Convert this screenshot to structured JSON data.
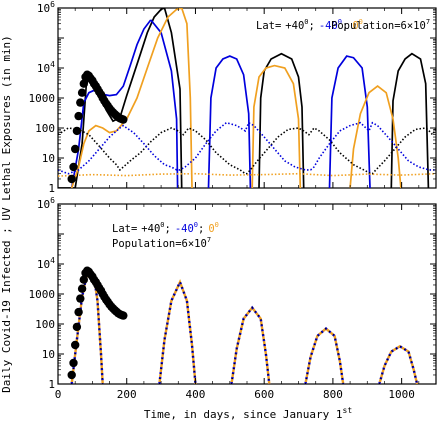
{
  "figure": {
    "ylabel": "Daily Covid-19 Infected ; UV Lethal Exposures (in min)",
    "xlabel": "Time, in days, since January 1",
    "xlabel_sup": "st"
  },
  "colors": {
    "lat_plus40": "#000000",
    "lat_minus40": "#0000dd",
    "lat_0": "#f0a020",
    "observed": "#000000"
  },
  "chart_data": [
    {
      "type": "line",
      "panel": "top",
      "xlim": [
        0,
        1100
      ],
      "ylim": [
        1,
        1000000
      ],
      "yscale": "log",
      "grid": false,
      "legend": {
        "lat_prefix": "Lat=",
        "lat_plus40": "+40",
        "sep1": ";",
        "lat_minus40": "-40",
        "sep2": ";",
        "lat_0": "0",
        "degree": "0",
        "population": "Population=6×10",
        "pop_exp": "7"
      },
      "x_ticks": [
        0,
        200,
        400,
        600,
        800,
        1000
      ],
      "y_ticks": [
        {
          "v": 1,
          "label": "1"
        },
        {
          "v": 10,
          "label": "10"
        },
        {
          "v": 100,
          "label": "100"
        },
        {
          "v": 1000,
          "label": "1000"
        },
        {
          "v": 10000,
          "label": "10",
          "sup": "4"
        },
        {
          "v": 1000000,
          "label": "10",
          "sup": "6"
        }
      ],
      "series": [
        {
          "key": "inf_p40",
          "color_key": "lat_plus40",
          "style": "solid",
          "x": [
            0,
            50,
            70,
            82,
            90,
            105,
            120,
            140,
            160,
            180,
            200,
            220,
            240,
            260,
            280,
            300,
            310
          ],
          "y": [
            1,
            1,
            30,
            2500,
            5000,
            3500,
            1300,
            400,
            170,
            220,
            1200,
            6000,
            30000,
            150000,
            500000,
            900000,
            1000000
          ],
          "segments": [
            {
              "x": [
                310,
                330,
                355,
                360
              ],
              "y": [
                1000000,
                150000,
                2000,
                1
              ]
            },
            {
              "x": [
                585,
                590,
                600,
                620,
                650,
                680,
                700,
                710,
                715
              ],
              "y": [
                1,
                1000,
                8000,
                20000,
                30000,
                20000,
                5000,
                500,
                1
              ]
            },
            {
              "x": [
                970,
                975,
                990,
                1010,
                1030,
                1055,
                1070,
                1078
              ],
              "y": [
                1,
                800,
                8000,
                20000,
                30000,
                20000,
                3000,
                1
              ]
            }
          ]
        },
        {
          "key": "inf_m40",
          "color_key": "lat_minus40",
          "style": "solid",
          "x": [
            40,
            60,
            75,
            90,
            105,
            120,
            135,
            150,
            170,
            190,
            210,
            230,
            250,
            270
          ],
          "y": [
            1,
            20,
            700,
            1500,
            1800,
            1600,
            1300,
            1200,
            1300,
            2500,
            12000,
            60000,
            200000,
            400000
          ],
          "segments": [
            {
              "x": [
                270,
                300,
                330,
                345,
                348
              ],
              "y": [
                400000,
                150000,
                8000,
                200,
                1
              ]
            },
            {
              "x": [
                438,
                445,
                460,
                480,
                500,
                520,
                540,
                555,
                560
              ],
              "y": [
                1,
                1000,
                10000,
                20000,
                25000,
                20000,
                6000,
                300,
                1
              ]
            },
            {
              "x": [
                790,
                797,
                815,
                840,
                860,
                885,
                900,
                908
              ],
              "y": [
                1,
                1000,
                10000,
                25000,
                22000,
                10000,
                500,
                1
              ]
            }
          ]
        },
        {
          "key": "inf_0",
          "color_key": "lat_0",
          "style": "solid",
          "x": [
            40,
            60,
            75,
            90,
            110,
            130,
            150,
            170,
            200,
            230,
            260,
            290,
            320,
            345,
            360
          ],
          "y": [
            1,
            5,
            30,
            80,
            120,
            100,
            70,
            80,
            200,
            1000,
            10000,
            100000,
            500000,
            900000,
            1000000
          ],
          "segments": [
            {
              "x": [
                360,
                375,
                385,
                390
              ],
              "y": [
                1000000,
                300000,
                1000,
                1
              ]
            },
            {
              "x": [
                565,
                570,
                585,
                605,
                630,
                660,
                685,
                700,
                705
              ],
              "y": [
                1,
                500,
                5000,
                10000,
                12000,
                10000,
                3000,
                200,
                1
              ]
            },
            {
              "x": [
                850,
                860,
                880,
                905,
                930,
                955,
                975,
                990,
                998
              ],
              "y": [
                1,
                20,
                300,
                1500,
                2500,
                1500,
                200,
                10,
                1
              ]
            }
          ]
        },
        {
          "key": "uv_p40",
          "color_key": "lat_plus40",
          "style": "dotted",
          "x": [
            0,
            30,
            60,
            90,
            120,
            150,
            170,
            180,
            190,
            210,
            240,
            270,
            300,
            330,
            350,
            365,
            380,
            400,
            430,
            460,
            500,
            530,
            545,
            550,
            560,
            580,
            610,
            640,
            670,
            700,
            715,
            730,
            745,
            760,
            790,
            820,
            860,
            890,
            910,
            915,
            925,
            950,
            980,
            1010,
            1040,
            1070,
            1080,
            1090,
            1100
          ],
          "y": [
            60,
            100,
            90,
            60,
            25,
            10,
            6,
            4,
            5,
            8,
            15,
            35,
            70,
            100,
            80,
            60,
            100,
            80,
            40,
            15,
            6,
            4,
            3,
            3,
            4,
            8,
            20,
            50,
            90,
            100,
            80,
            60,
            100,
            80,
            40,
            15,
            6,
            4,
            3,
            3,
            4,
            8,
            20,
            50,
            90,
            100,
            80,
            60,
            100
          ]
        },
        {
          "key": "uv_m40",
          "color_key": "lat_minus40",
          "style": "dotted",
          "x": [
            0,
            30,
            60,
            90,
            120,
            150,
            180,
            190,
            200,
            220,
            250,
            280,
            310,
            330,
            345,
            355,
            370,
            400,
            430,
            460,
            490,
            520,
            545,
            555,
            570,
            600,
            630,
            660,
            690,
            720,
            735,
            745,
            760,
            790,
            820,
            850,
            880,
            905,
            915,
            930,
            960,
            990,
            1020,
            1050,
            1080,
            1100
          ],
          "y": [
            4,
            3,
            4,
            8,
            20,
            50,
            100,
            120,
            100,
            70,
            30,
            12,
            6,
            5,
            4,
            4,
            5,
            10,
            30,
            80,
            150,
            120,
            80,
            150,
            120,
            50,
            20,
            8,
            5,
            4,
            4,
            5,
            10,
            30,
            80,
            120,
            150,
            80,
            150,
            120,
            50,
            20,
            8,
            5,
            4,
            4
          ]
        },
        {
          "key": "uv_0",
          "color_key": "lat_0",
          "style": "dotted",
          "x": [
            0,
            100,
            200,
            300,
            400,
            500,
            600,
            700,
            800,
            900,
            1000,
            1100
          ],
          "y": [
            2.5,
            2.8,
            2.6,
            2.9,
            3,
            2.7,
            2.8,
            3,
            2.6,
            2.9,
            2.7,
            3
          ]
        }
      ],
      "observed": {
        "x": [
          40,
          45,
          50,
          55,
          60,
          65,
          70,
          75,
          80,
          85,
          90,
          95,
          100,
          105,
          110,
          115,
          120,
          125,
          130,
          135,
          140,
          145,
          150,
          155,
          160,
          165,
          170,
          175,
          180,
          185,
          190
        ],
        "y": [
          2,
          5,
          20,
          80,
          250,
          700,
          1500,
          3000,
          5000,
          6000,
          5500,
          4500,
          3800,
          3000,
          2500,
          2000,
          1600,
          1300,
          1000,
          800,
          650,
          550,
          450,
          380,
          330,
          290,
          260,
          230,
          210,
          200,
          190
        ]
      }
    },
    {
      "type": "line",
      "panel": "bottom",
      "xlim": [
        0,
        1100
      ],
      "ylim": [
        1,
        1000000
      ],
      "yscale": "log",
      "grid": false,
      "legend": {
        "lat_prefix": "Lat=",
        "lat_plus40": "+40",
        "sep1": ";",
        "lat_minus40": "-40",
        "sep2": ";",
        "lat_0": "0",
        "degree": "0",
        "population": "Population=6×10",
        "pop_exp": "7"
      },
      "x_ticks": [
        {
          "v": 0,
          "label": "0"
        },
        {
          "v": 200,
          "label": "200"
        },
        {
          "v": 400,
          "label": "400"
        },
        {
          "v": 600,
          "label": "600"
        },
        {
          "v": 800,
          "label": "800"
        },
        {
          "v": 1000,
          "label": "1000"
        }
      ],
      "y_ticks": [
        {
          "v": 1,
          "label": "1"
        },
        {
          "v": 10,
          "label": "10"
        },
        {
          "v": 100,
          "label": "100"
        },
        {
          "v": 1000,
          "label": "1000"
        },
        {
          "v": 10000,
          "label": "10",
          "sup": "4"
        },
        {
          "v": 1000000,
          "label": "10",
          "sup": "6"
        }
      ],
      "wave_series_keys": [
        "lat_0",
        "lat_minus40",
        "lat_plus40"
      ],
      "waves": [
        {
          "x": [
            40,
            55,
            70,
            85,
            95,
            105,
            115,
            125,
            130
          ],
          "y": [
            1,
            30,
            800,
            5000,
            6000,
            3500,
            600,
            10,
            1
          ]
        },
        {
          "x": [
            295,
            310,
            330,
            355,
            375,
            390,
            400
          ],
          "y": [
            1,
            30,
            600,
            2500,
            600,
            20,
            1
          ]
        },
        {
          "x": [
            505,
            520,
            540,
            565,
            590,
            605,
            615
          ],
          "y": [
            1,
            15,
            150,
            350,
            150,
            10,
            1
          ]
        },
        {
          "x": [
            720,
            735,
            755,
            780,
            805,
            820,
            830
          ],
          "y": [
            1,
            8,
            40,
            70,
            40,
            6,
            1
          ]
        },
        {
          "x": [
            935,
            950,
            970,
            995,
            1020,
            1035,
            1045
          ],
          "y": [
            1,
            4,
            12,
            18,
            12,
            3,
            1
          ]
        }
      ],
      "observed": {
        "x": [
          40,
          45,
          50,
          55,
          60,
          65,
          70,
          75,
          80,
          85,
          90,
          95,
          100,
          105,
          110,
          115,
          120,
          125,
          130,
          135,
          140,
          145,
          150,
          155,
          160,
          165,
          170,
          175,
          180,
          185,
          190
        ],
        "y": [
          2,
          5,
          20,
          80,
          250,
          700,
          1500,
          3000,
          5000,
          6000,
          5500,
          4500,
          3800,
          3000,
          2500,
          2000,
          1600,
          1300,
          1000,
          800,
          650,
          550,
          450,
          380,
          330,
          290,
          260,
          230,
          210,
          200,
          190
        ]
      }
    }
  ]
}
